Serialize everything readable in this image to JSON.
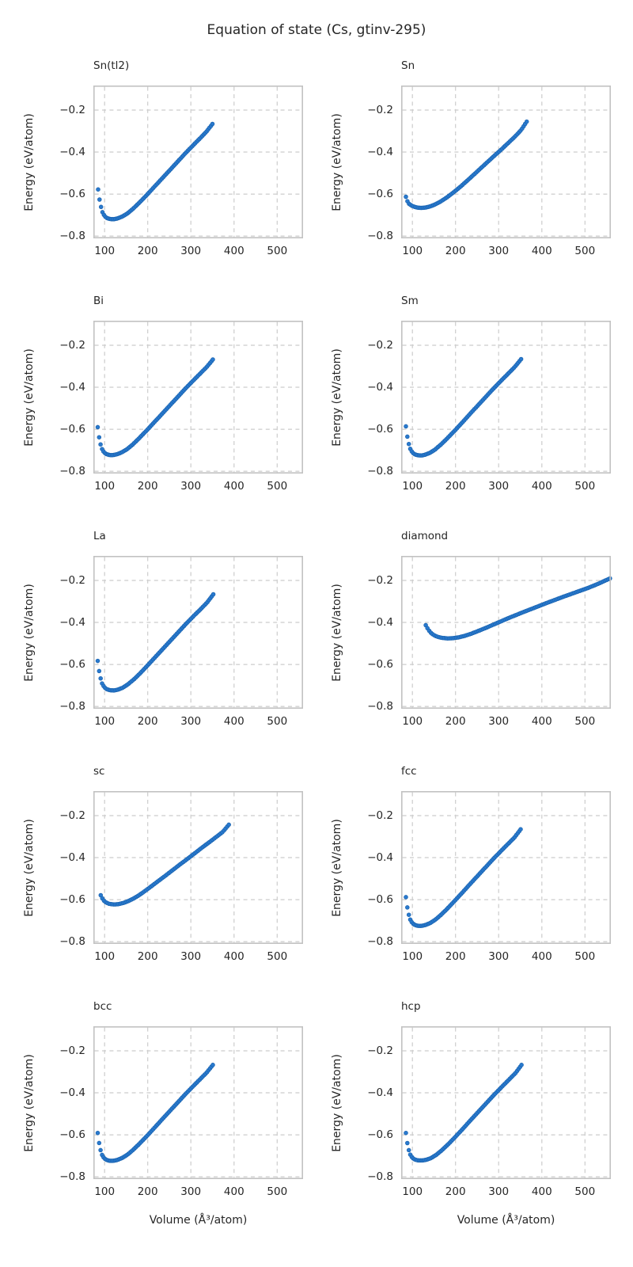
{
  "figure": {
    "title": "Equation of state (Cs, gtinv-295)",
    "xlabel": "Volume (Å³/atom)",
    "ylabel": "Energy (eV/atom)"
  },
  "axes": {
    "xlim": [
      74,
      560
    ],
    "ylim": [
      -0.811,
      -0.083
    ],
    "xticks": [
      100,
      200,
      300,
      400,
      500
    ],
    "yticks": [
      -0.2,
      -0.4,
      -0.6,
      -0.8
    ],
    "xtick_labels": [
      "100",
      "200",
      "300",
      "400",
      "500"
    ],
    "ytick_labels": [
      "−0.2",
      "−0.4",
      "−0.6",
      "−0.8"
    ],
    "grid": "dashed",
    "grid_color": "#cccccc",
    "spine_color": "#c2c2c2",
    "marker_color": "#2a7ace",
    "marker_edge_color": "#1761ae",
    "legend": "none"
  },
  "chart_data": [
    {
      "type": "scatter",
      "id": "sn-tl2",
      "title": "Sn(tl2)",
      "xlabel": "Volume (Å³/atom)",
      "ylabel": "Energy (eV/atom)",
      "n_markers": 80,
      "points": [
        [
          85,
          -0.578
        ],
        [
          88,
          -0.622
        ],
        [
          91,
          -0.656
        ],
        [
          95,
          -0.686
        ],
        [
          100,
          -0.705
        ],
        [
          106,
          -0.715
        ],
        [
          113,
          -0.719
        ],
        [
          121,
          -0.72
        ],
        [
          130,
          -0.716
        ],
        [
          141,
          -0.707
        ],
        [
          153,
          -0.692
        ],
        [
          166,
          -0.67
        ],
        [
          181,
          -0.64
        ],
        [
          198,
          -0.604
        ],
        [
          216,
          -0.564
        ],
        [
          234,
          -0.524
        ],
        [
          252,
          -0.484
        ],
        [
          270,
          -0.444
        ],
        [
          288,
          -0.404
        ],
        [
          306,
          -0.366
        ],
        [
          321,
          -0.335
        ],
        [
          336,
          -0.303
        ],
        [
          350,
          -0.266
        ]
      ]
    },
    {
      "type": "scatter",
      "id": "sn",
      "title": "Sn",
      "xlabel": "Volume (Å³/atom)",
      "ylabel": "Energy (eV/atom)",
      "n_markers": 80,
      "points": [
        [
          85,
          -0.613
        ],
        [
          88,
          -0.632
        ],
        [
          92,
          -0.646
        ],
        [
          98,
          -0.655
        ],
        [
          105,
          -0.661
        ],
        [
          113,
          -0.665
        ],
        [
          122,
          -0.666
        ],
        [
          131,
          -0.664
        ],
        [
          141,
          -0.659
        ],
        [
          152,
          -0.65
        ],
        [
          165,
          -0.636
        ],
        [
          180,
          -0.616
        ],
        [
          196,
          -0.591
        ],
        [
          213,
          -0.562
        ],
        [
          231,
          -0.529
        ],
        [
          250,
          -0.493
        ],
        [
          269,
          -0.457
        ],
        [
          288,
          -0.421
        ],
        [
          307,
          -0.386
        ],
        [
          323,
          -0.355
        ],
        [
          338,
          -0.326
        ],
        [
          352,
          -0.295
        ],
        [
          365,
          -0.255
        ]
      ]
    },
    {
      "type": "scatter",
      "id": "bi",
      "title": "Bi",
      "xlabel": "Volume (Å³/atom)",
      "ylabel": "Energy (eV/atom)",
      "n_markers": 80,
      "points": [
        [
          84,
          -0.59
        ],
        [
          87,
          -0.634
        ],
        [
          90,
          -0.667
        ],
        [
          94,
          -0.694
        ],
        [
          99,
          -0.711
        ],
        [
          105,
          -0.719
        ],
        [
          112,
          -0.723
        ],
        [
          120,
          -0.723
        ],
        [
          129,
          -0.719
        ],
        [
          140,
          -0.71
        ],
        [
          152,
          -0.695
        ],
        [
          165,
          -0.673
        ],
        [
          180,
          -0.643
        ],
        [
          197,
          -0.607
        ],
        [
          215,
          -0.567
        ],
        [
          233,
          -0.527
        ],
        [
          251,
          -0.487
        ],
        [
          269,
          -0.447
        ],
        [
          287,
          -0.407
        ],
        [
          305,
          -0.369
        ],
        [
          320,
          -0.338
        ],
        [
          336,
          -0.305
        ],
        [
          351,
          -0.268
        ]
      ]
    },
    {
      "type": "scatter",
      "id": "sm",
      "title": "Sm",
      "xlabel": "Volume (Å³/atom)",
      "ylabel": "Energy (eV/atom)",
      "n_markers": 80,
      "points": [
        [
          85,
          -0.586
        ],
        [
          88,
          -0.631
        ],
        [
          91,
          -0.665
        ],
        [
          95,
          -0.693
        ],
        [
          100,
          -0.711
        ],
        [
          106,
          -0.72
        ],
        [
          113,
          -0.724
        ],
        [
          121,
          -0.725
        ],
        [
          130,
          -0.721
        ],
        [
          141,
          -0.712
        ],
        [
          153,
          -0.696
        ],
        [
          166,
          -0.673
        ],
        [
          181,
          -0.643
        ],
        [
          198,
          -0.607
        ],
        [
          216,
          -0.567
        ],
        [
          234,
          -0.526
        ],
        [
          252,
          -0.486
        ],
        [
          270,
          -0.446
        ],
        [
          288,
          -0.406
        ],
        [
          306,
          -0.368
        ],
        [
          321,
          -0.337
        ],
        [
          337,
          -0.304
        ],
        [
          352,
          -0.266
        ]
      ]
    },
    {
      "type": "scatter",
      "id": "la",
      "title": "La",
      "xlabel": "Volume (Å³/atom)",
      "ylabel": "Energy (eV/atom)",
      "n_markers": 80,
      "points": [
        [
          84,
          -0.583
        ],
        [
          87,
          -0.627
        ],
        [
          90,
          -0.661
        ],
        [
          94,
          -0.69
        ],
        [
          99,
          -0.708
        ],
        [
          105,
          -0.718
        ],
        [
          113,
          -0.723
        ],
        [
          122,
          -0.724
        ],
        [
          131,
          -0.72
        ],
        [
          142,
          -0.711
        ],
        [
          154,
          -0.695
        ],
        [
          168,
          -0.671
        ],
        [
          183,
          -0.641
        ],
        [
          200,
          -0.604
        ],
        [
          218,
          -0.564
        ],
        [
          236,
          -0.524
        ],
        [
          254,
          -0.484
        ],
        [
          272,
          -0.444
        ],
        [
          290,
          -0.404
        ],
        [
          308,
          -0.366
        ],
        [
          323,
          -0.336
        ],
        [
          338,
          -0.304
        ],
        [
          352,
          -0.266
        ]
      ]
    },
    {
      "type": "scatter",
      "id": "diamond",
      "title": "diamond",
      "xlabel": "Volume (Å³/atom)",
      "ylabel": "Energy (eV/atom)",
      "n_markers": 110,
      "points": [
        [
          131,
          -0.413
        ],
        [
          137,
          -0.435
        ],
        [
          144,
          -0.452
        ],
        [
          152,
          -0.463
        ],
        [
          161,
          -0.47
        ],
        [
          171,
          -0.474
        ],
        [
          182,
          -0.476
        ],
        [
          194,
          -0.475
        ],
        [
          207,
          -0.471
        ],
        [
          221,
          -0.464
        ],
        [
          236,
          -0.454
        ],
        [
          252,
          -0.441
        ],
        [
          269,
          -0.427
        ],
        [
          287,
          -0.411
        ],
        [
          306,
          -0.394
        ],
        [
          330,
          -0.373
        ],
        [
          358,
          -0.35
        ],
        [
          388,
          -0.326
        ],
        [
          418,
          -0.302
        ],
        [
          448,
          -0.279
        ],
        [
          478,
          -0.257
        ],
        [
          508,
          -0.235
        ],
        [
          535,
          -0.212
        ],
        [
          558,
          -0.19
        ]
      ]
    },
    {
      "type": "scatter",
      "id": "sc",
      "title": "sc",
      "xlabel": "Volume (Å³/atom)",
      "ylabel": "Energy (eV/atom)",
      "n_markers": 80,
      "points": [
        [
          91,
          -0.579
        ],
        [
          94,
          -0.592
        ],
        [
          98,
          -0.604
        ],
        [
          103,
          -0.613
        ],
        [
          109,
          -0.619
        ],
        [
          116,
          -0.622
        ],
        [
          124,
          -0.623
        ],
        [
          133,
          -0.621
        ],
        [
          143,
          -0.616
        ],
        [
          154,
          -0.608
        ],
        [
          166,
          -0.596
        ],
        [
          179,
          -0.58
        ],
        [
          193,
          -0.56
        ],
        [
          208,
          -0.537
        ],
        [
          224,
          -0.512
        ],
        [
          241,
          -0.486
        ],
        [
          258,
          -0.459
        ],
        [
          275,
          -0.432
        ],
        [
          292,
          -0.406
        ],
        [
          309,
          -0.379
        ],
        [
          326,
          -0.352
        ],
        [
          343,
          -0.326
        ],
        [
          359,
          -0.301
        ],
        [
          374,
          -0.277
        ],
        [
          388,
          -0.243
        ]
      ]
    },
    {
      "type": "scatter",
      "id": "fcc",
      "title": "fcc",
      "xlabel": "Volume (Å³/atom)",
      "ylabel": "Energy (eV/atom)",
      "n_markers": 80,
      "points": [
        [
          85,
          -0.588
        ],
        [
          88,
          -0.633
        ],
        [
          91,
          -0.667
        ],
        [
          95,
          -0.695
        ],
        [
          100,
          -0.712
        ],
        [
          106,
          -0.721
        ],
        [
          113,
          -0.725
        ],
        [
          121,
          -0.725
        ],
        [
          130,
          -0.721
        ],
        [
          141,
          -0.712
        ],
        [
          153,
          -0.696
        ],
        [
          166,
          -0.673
        ],
        [
          181,
          -0.643
        ],
        [
          198,
          -0.606
        ],
        [
          216,
          -0.566
        ],
        [
          234,
          -0.525
        ],
        [
          252,
          -0.485
        ],
        [
          270,
          -0.445
        ],
        [
          288,
          -0.405
        ],
        [
          306,
          -0.367
        ],
        [
          321,
          -0.336
        ],
        [
          337,
          -0.303
        ],
        [
          351,
          -0.265
        ]
      ]
    },
    {
      "type": "scatter",
      "id": "bcc",
      "title": "bcc",
      "xlabel": "Volume (Å³/atom)",
      "ylabel": "Energy (eV/atom)",
      "n_markers": 80,
      "points": [
        [
          84,
          -0.591
        ],
        [
          87,
          -0.635
        ],
        [
          90,
          -0.668
        ],
        [
          94,
          -0.695
        ],
        [
          99,
          -0.712
        ],
        [
          105,
          -0.72
        ],
        [
          112,
          -0.724
        ],
        [
          120,
          -0.724
        ],
        [
          129,
          -0.72
        ],
        [
          140,
          -0.711
        ],
        [
          152,
          -0.696
        ],
        [
          165,
          -0.674
        ],
        [
          180,
          -0.644
        ],
        [
          197,
          -0.608
        ],
        [
          215,
          -0.568
        ],
        [
          233,
          -0.527
        ],
        [
          251,
          -0.487
        ],
        [
          269,
          -0.447
        ],
        [
          287,
          -0.407
        ],
        [
          305,
          -0.369
        ],
        [
          320,
          -0.338
        ],
        [
          336,
          -0.305
        ],
        [
          351,
          -0.267
        ]
      ]
    },
    {
      "type": "scatter",
      "id": "hcp",
      "title": "hcp",
      "xlabel": "Volume (Å³/atom)",
      "ylabel": "Energy (eV/atom)",
      "n_markers": 80,
      "points": [
        [
          85,
          -0.591
        ],
        [
          88,
          -0.635
        ],
        [
          91,
          -0.668
        ],
        [
          95,
          -0.694
        ],
        [
          100,
          -0.71
        ],
        [
          106,
          -0.718
        ],
        [
          114,
          -0.722
        ],
        [
          123,
          -0.722
        ],
        [
          132,
          -0.719
        ],
        [
          143,
          -0.711
        ],
        [
          155,
          -0.696
        ],
        [
          168,
          -0.674
        ],
        [
          183,
          -0.645
        ],
        [
          200,
          -0.609
        ],
        [
          218,
          -0.569
        ],
        [
          236,
          -0.528
        ],
        [
          254,
          -0.488
        ],
        [
          272,
          -0.448
        ],
        [
          290,
          -0.408
        ],
        [
          308,
          -0.37
        ],
        [
          323,
          -0.339
        ],
        [
          339,
          -0.306
        ],
        [
          353,
          -0.267
        ]
      ]
    }
  ]
}
